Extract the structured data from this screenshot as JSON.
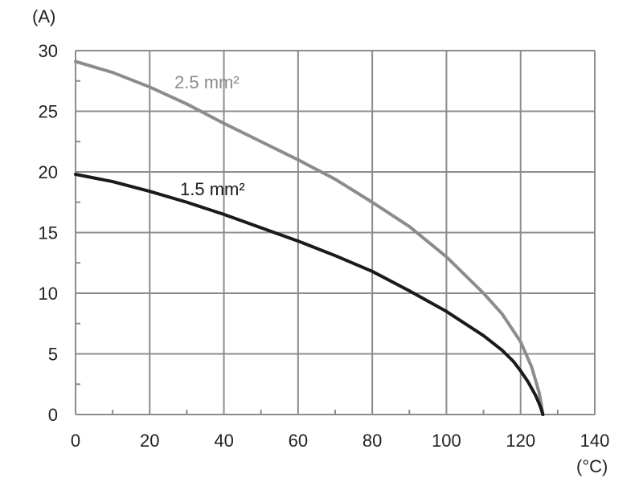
{
  "chart_data": {
    "type": "line",
    "title": "",
    "xlabel": "",
    "ylabel": "",
    "x_unit": "(°C)",
    "y_unit": "(A)",
    "xlim": [
      0,
      140
    ],
    "ylim": [
      0,
      30
    ],
    "x_ticks": [
      "0",
      "20",
      "40",
      "60",
      "80",
      "100",
      "120",
      "140"
    ],
    "y_ticks": [
      "0",
      "5",
      "10",
      "15",
      "20",
      "25",
      "30"
    ],
    "grid": true,
    "series": [
      {
        "name": "2.5 mm²",
        "color": "#8c8c8c",
        "points": [
          [
            0,
            29.1
          ],
          [
            10,
            28.2
          ],
          [
            20,
            27.0
          ],
          [
            30,
            25.6
          ],
          [
            40,
            24.0
          ],
          [
            50,
            22.5
          ],
          [
            60,
            21.0
          ],
          [
            70,
            19.4
          ],
          [
            80,
            17.5
          ],
          [
            90,
            15.5
          ],
          [
            100,
            13.0
          ],
          [
            110,
            10.0
          ],
          [
            115,
            8.3
          ],
          [
            120,
            6.0
          ],
          [
            123,
            3.9
          ],
          [
            125,
            1.8
          ],
          [
            125.5,
            1.0
          ],
          [
            126,
            0
          ]
        ]
      },
      {
        "name": "1.5 mm²",
        "color": "#1a1a1a",
        "points": [
          [
            0,
            19.8
          ],
          [
            10,
            19.2
          ],
          [
            20,
            18.4
          ],
          [
            30,
            17.5
          ],
          [
            40,
            16.5
          ],
          [
            50,
            15.4
          ],
          [
            60,
            14.3
          ],
          [
            70,
            13.1
          ],
          [
            80,
            11.8
          ],
          [
            90,
            10.2
          ],
          [
            100,
            8.5
          ],
          [
            110,
            6.5
          ],
          [
            115,
            5.3
          ],
          [
            118,
            4.4
          ],
          [
            120,
            3.6
          ],
          [
            122,
            2.7
          ],
          [
            124,
            1.6
          ],
          [
            125,
            0.9
          ],
          [
            125.5,
            0.5
          ],
          [
            126,
            0
          ]
        ]
      }
    ]
  }
}
